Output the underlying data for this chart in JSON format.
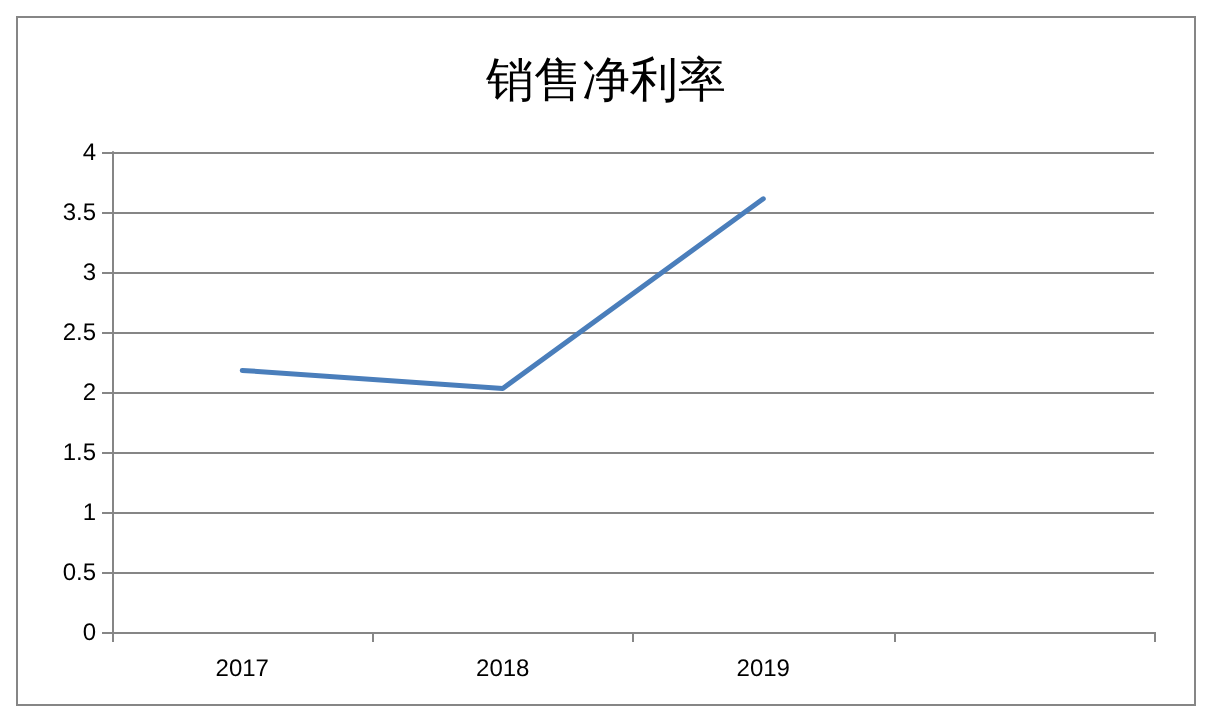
{
  "chart_data": {
    "type": "line",
    "title": "销售净利率",
    "categories": [
      "2017",
      "2018",
      "2019",
      null
    ],
    "series": [
      {
        "color": "#4a7ebb",
        "values": [
          2.18,
          2.03,
          3.61,
          null
        ]
      }
    ],
    "ylim": [
      0,
      4
    ],
    "yticks": [
      0,
      0.5,
      1,
      1.5,
      2,
      2.5,
      3,
      3.5,
      4
    ],
    "grid": "y",
    "marker": "none",
    "line_style": "solid"
  }
}
